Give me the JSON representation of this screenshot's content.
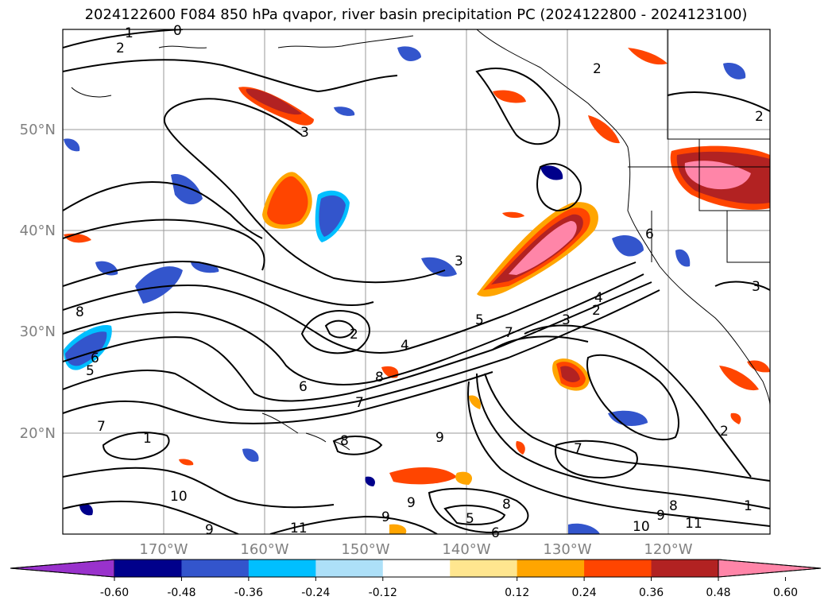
{
  "title": "2024122600 F084 850 hPa qvapor, river basin precipitation PC (2024122800 - 2024123100)",
  "map": {
    "lon_labels": [
      "170°W",
      "160°W",
      "150°W",
      "140°W",
      "130°W",
      "120°W"
    ],
    "lat_labels": [
      "50°N",
      "40°N",
      "30°N",
      "20°N"
    ],
    "contour_labels": [
      "1",
      "0",
      "2",
      "2",
      "2",
      "3",
      "3",
      "4",
      "5",
      "6",
      "7",
      "8",
      "9",
      "10",
      "11",
      "6",
      "5",
      "8",
      "7",
      "6",
      "9",
      "3",
      "2",
      "1",
      "2",
      "4",
      "7",
      "8",
      "9",
      "10",
      "11",
      "8",
      "6",
      "5",
      "9",
      "7",
      "1",
      "3",
      "2",
      "8",
      "9"
    ]
  },
  "colorbar": {
    "ticks": [
      "-0.60",
      "-0.48",
      "-0.36",
      "-0.24",
      "-0.12",
      "0.12",
      "0.24",
      "0.36",
      "0.48",
      "0.60"
    ],
    "colors": [
      "#9932CC",
      "#00008B",
      "#3355CC",
      "#00BFFF",
      "#ADE0F8",
      "#FFFFFF",
      "#FFE68F",
      "#FFA500",
      "#FF4500",
      "#B22222",
      "#FF85A8"
    ]
  }
}
